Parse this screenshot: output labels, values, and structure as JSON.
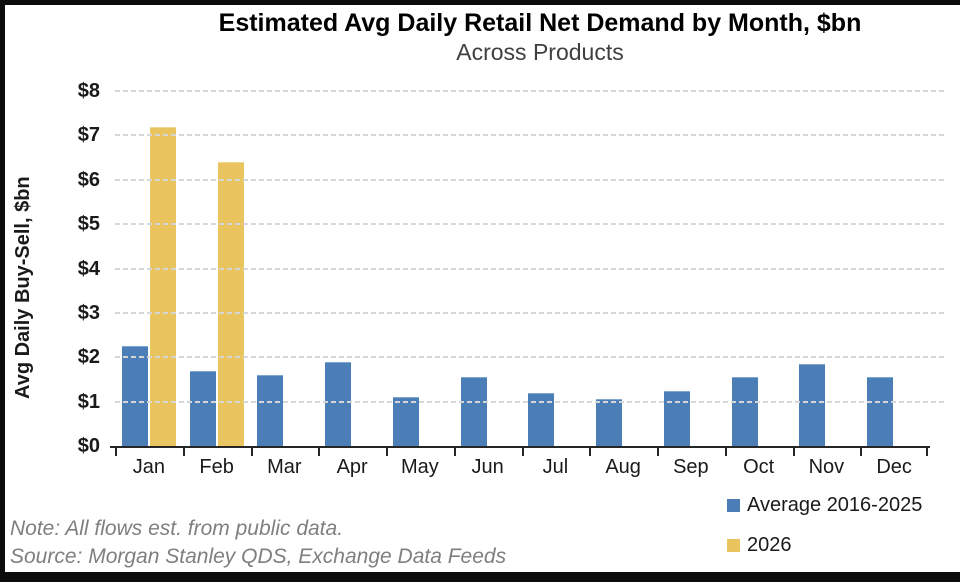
{
  "header": {
    "title": "Estimated Avg Daily Retail Net Demand by Month, $bn",
    "subtitle": "Across Products"
  },
  "chart_data": {
    "type": "bar",
    "title": "Estimated Avg Daily Retail Net Demand by Month, $bn",
    "subtitle": "Across Products",
    "ylabel": "Avg Daily Buy-Sell, $bn",
    "ylim": [
      0,
      8
    ],
    "ytick_step": 1,
    "ytick_prefix": "$",
    "grid": "horizontal-dashed",
    "legend_position": "bottom-right",
    "categories": [
      "Jan",
      "Feb",
      "Mar",
      "Apr",
      "May",
      "Jun",
      "Jul",
      "Aug",
      "Sep",
      "Oct",
      "Nov",
      "Dec"
    ],
    "series": [
      {
        "name": "Average 2016-2025",
        "color": "#4B7EB7",
        "edge_color": "#7FA6CF",
        "values": [
          2.25,
          1.7,
          1.6,
          1.9,
          1.1,
          1.55,
          1.2,
          1.05,
          1.25,
          1.55,
          1.85,
          1.55
        ]
      },
      {
        "name": "2026",
        "color": "#EAC55F",
        "edge_color": "#F0D78F",
        "values": [
          7.2,
          6.4,
          null,
          null,
          null,
          null,
          null,
          null,
          null,
          null,
          null,
          null
        ]
      }
    ]
  },
  "footer": {
    "note": "Note: All flows est. from public data.",
    "source": "Source: Morgan Stanley QDS, Exchange Data Feeds"
  },
  "colors": {
    "gridline": "#d6d6d6",
    "axis": "#262626",
    "note_text": "#7f7f7f",
    "frame": "#0c0c0c"
  }
}
